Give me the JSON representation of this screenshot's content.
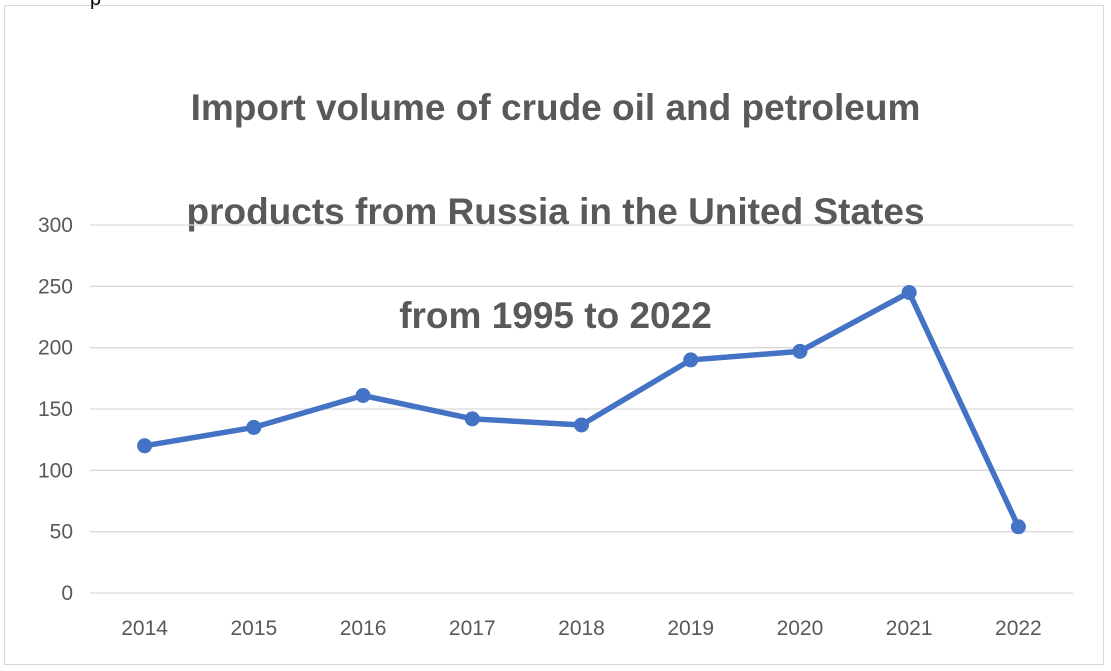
{
  "chart_data": {
    "type": "line",
    "title": "Import volume of crude oil and petroleum products from Russia in the United States from 1995 to 2022",
    "title_lines": [
      "Import volume of crude oil and petroleum",
      "products from Russia in the United States",
      "from 1995 to 2022"
    ],
    "categories": [
      "2014",
      "2015",
      "2016",
      "2017",
      "2018",
      "2019",
      "2020",
      "2021",
      "2022"
    ],
    "series": [
      {
        "values": [
          120,
          135,
          161,
          142,
          137,
          190,
          197,
          245,
          54
        ],
        "color": "#4472c4"
      }
    ],
    "xlabel": "",
    "ylabel": "",
    "ylim": [
      0,
      300
    ],
    "yticks": [
      "0",
      "50",
      "100",
      "150",
      "200",
      "250",
      "300"
    ],
    "grid": true,
    "legend": "none"
  },
  "colors": {
    "title": "#595959",
    "axis_text": "#595959",
    "gridline": "#d9d9d9",
    "line": "#4472c4"
  },
  "top_fragment": "p"
}
